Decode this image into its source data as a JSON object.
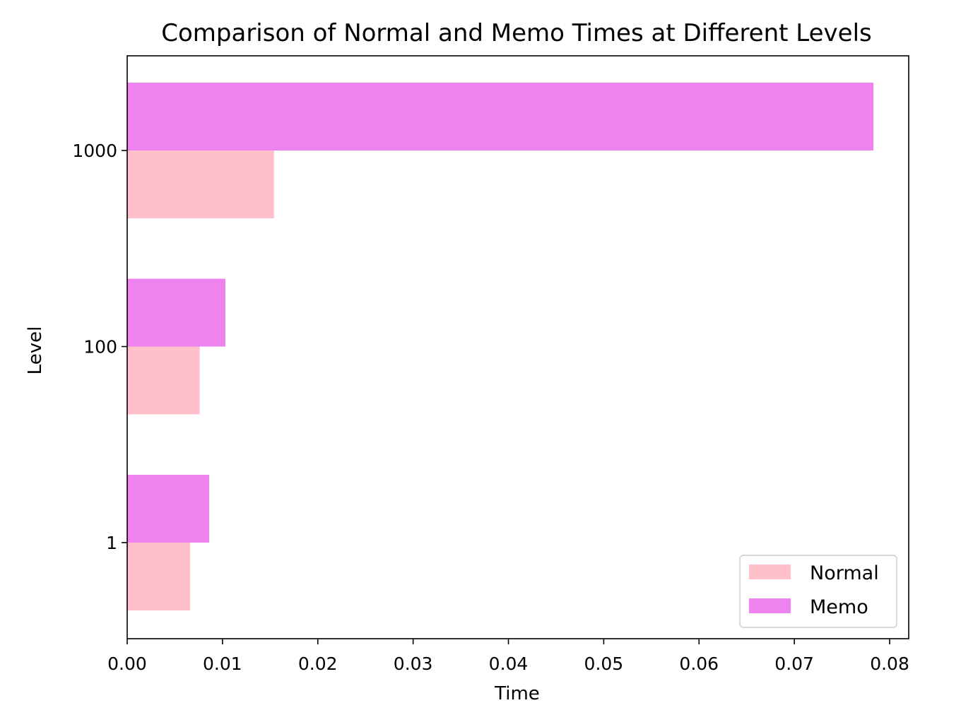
{
  "chart_data": {
    "type": "bar",
    "orientation": "horizontal",
    "title": "Comparison of Normal and Memo Times at Different Levels",
    "xlabel": "Time",
    "ylabel": "Level",
    "categories": [
      "1",
      "100",
      "1000"
    ],
    "series": [
      {
        "name": "Normal",
        "values": [
          0.0066,
          0.0076,
          0.0154
        ],
        "color": "#ffc0cb"
      },
      {
        "name": "Memo",
        "values": [
          0.0086,
          0.0103,
          0.0783
        ],
        "color": "#ee82ee"
      }
    ],
    "xlim": [
      0.0,
      0.082
    ],
    "xticks": [
      0.0,
      0.01,
      0.02,
      0.03,
      0.04,
      0.05,
      0.06,
      0.07,
      0.08
    ],
    "xtick_labels": [
      "0.00",
      "0.01",
      "0.02",
      "0.03",
      "0.04",
      "0.05",
      "0.06",
      "0.07",
      "0.08"
    ],
    "grid": false,
    "legend": {
      "placement": "lower-right",
      "entries": [
        "Normal",
        "Memo"
      ]
    }
  }
}
